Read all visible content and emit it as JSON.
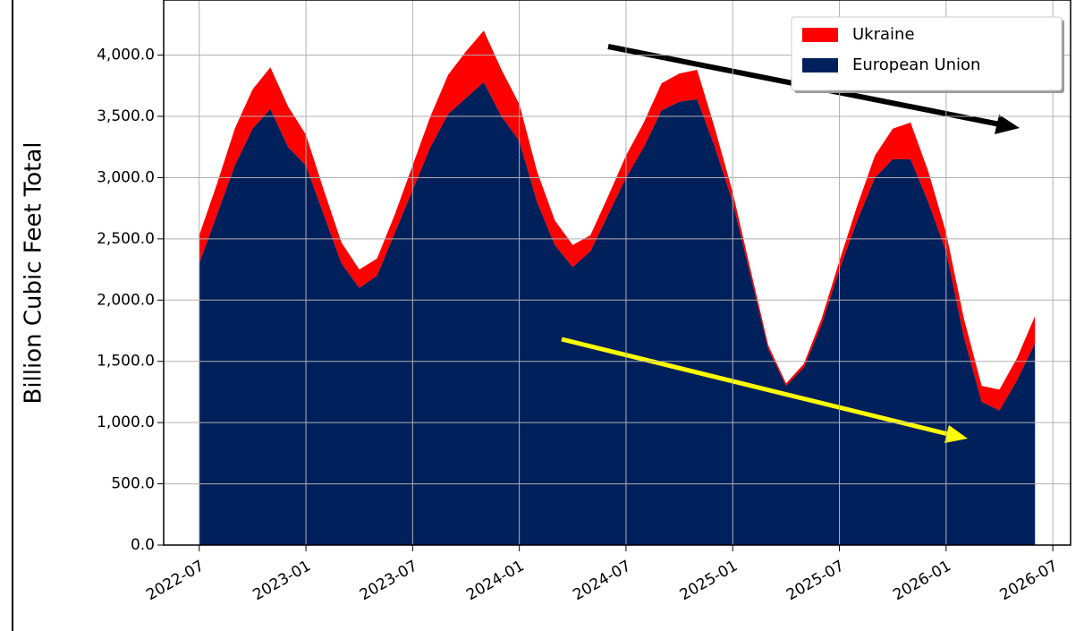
{
  "chart_data": {
    "type": "stacked_area",
    "y_label": "Billion Cubic Feet Total",
    "x": [
      "2022-07",
      "2022-08",
      "2022-09",
      "2022-10",
      "2022-11",
      "2022-12",
      "2023-01",
      "2023-02",
      "2023-03",
      "2023-04",
      "2023-05",
      "2023-06",
      "2023-07",
      "2023-08",
      "2023-09",
      "2023-10",
      "2023-11",
      "2023-12",
      "2024-01",
      "2024-02",
      "2024-03",
      "2024-04",
      "2024-05",
      "2024-06",
      "2024-07",
      "2024-08",
      "2024-09",
      "2024-10",
      "2024-11",
      "2024-12",
      "2025-01",
      "2025-02",
      "2025-03",
      "2025-04",
      "2025-05",
      "2025-06",
      "2025-07",
      "2025-08",
      "2025-09",
      "2025-10",
      "2025-11",
      "2025-12",
      "2026-01",
      "2026-02",
      "2026-03",
      "2026-04",
      "2026-05",
      "2026-06"
    ],
    "series": [
      {
        "name": "European Union",
        "color": "#00205b",
        "values": [
          2300,
          2700,
          3100,
          3400,
          3560,
          3250,
          3100,
          2700,
          2300,
          2100,
          2200,
          2550,
          2900,
          3250,
          3520,
          3650,
          3780,
          3500,
          3300,
          2800,
          2450,
          2270,
          2400,
          2700,
          3000,
          3250,
          3550,
          3620,
          3640,
          3250,
          2800,
          2200,
          1600,
          1300,
          1450,
          1800,
          2250,
          2650,
          3000,
          3150,
          3150,
          2800,
          2400,
          1700,
          1170,
          1100,
          1350,
          1650
        ]
      },
      {
        "name": "Ukraine",
        "color": "#ff0000",
        "values": [
          230,
          250,
          300,
          320,
          340,
          330,
          250,
          200,
          170,
          150,
          140,
          150,
          200,
          250,
          320,
          380,
          420,
          380,
          300,
          250,
          200,
          180,
          130,
          150,
          180,
          200,
          220,
          230,
          240,
          150,
          80,
          50,
          30,
          20,
          30,
          50,
          70,
          120,
          180,
          250,
          300,
          250,
          150,
          150,
          130,
          170,
          180,
          220
        ]
      }
    ],
    "xlim": [
      "2022-05",
      "2026-08"
    ],
    "xticks": [
      "2022-07",
      "2023-01",
      "2023-07",
      "2024-01",
      "2024-07",
      "2025-01",
      "2025-07",
      "2026-01",
      "2026-07"
    ],
    "ylim": [
      0,
      4450
    ],
    "yticks": [
      {
        "value": 0,
        "label": "0.0"
      },
      {
        "value": 500,
        "label": "500.0"
      },
      {
        "value": 1000,
        "label": "1,000.0"
      },
      {
        "value": 1500,
        "label": "1,500.0"
      },
      {
        "value": 2000,
        "label": "2,000.0"
      },
      {
        "value": 2500,
        "label": "2,500.0"
      },
      {
        "value": 3000,
        "label": "3,000.0"
      },
      {
        "value": 3500,
        "label": "3,500.0"
      },
      {
        "value": 4000,
        "label": "4,000.0"
      }
    ],
    "grid": true,
    "legend": "upper right"
  }
}
